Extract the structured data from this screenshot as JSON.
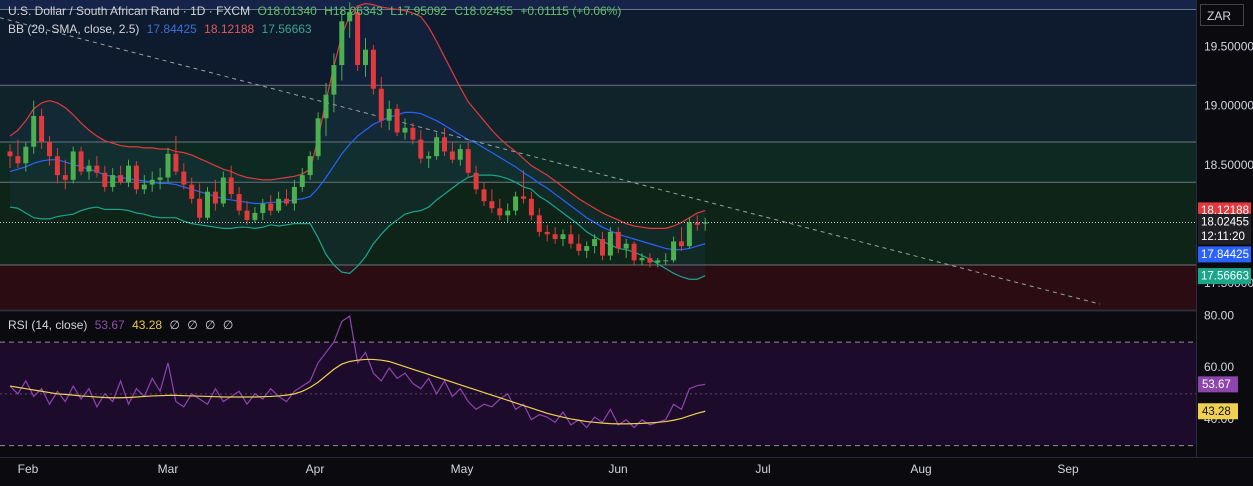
{
  "legend": {
    "symbol": "U.S. Dollar / South African Rand · 1D · FXCM",
    "open": "O18.01340",
    "high": "H18.06343",
    "low": "L17.95092",
    "close": "C18.02455",
    "change": "+0.01115 (+0.06%)",
    "bb_label": "BB (20, SMA, close, 2.5)",
    "bb_basis": "17.84425",
    "bb_upper": "18.12188",
    "bb_lower": "17.56663",
    "rsi_label": "RSI (14, close)",
    "rsi_value": "53.67",
    "rsi_ma": "43.28",
    "rsi_empty": [
      "∅",
      "∅",
      "∅",
      "∅"
    ]
  },
  "currency": "ZAR",
  "colors": {
    "up": "#4caf50",
    "down": "#e0393e",
    "bb_basis": "#2962ff",
    "bb_upper": "#e0393e",
    "bb_lower": "#1aa68a",
    "rsi": "#8e44ad",
    "rsi_ma": "#f0d050",
    "price_badge": "#1f1f24"
  },
  "chart_data": [
    {
      "type": "candlestick",
      "title": "U.S. Dollar / South African Rand",
      "x_ticks": [
        "Feb",
        "Mar",
        "Apr",
        "May",
        "Jun",
        "Jul",
        "Aug",
        "Sep"
      ],
      "y_ticks": [
        "19.50000",
        "19.00000",
        "18.50000",
        "17.50000"
      ],
      "ylim": [
        17.28,
        19.9
      ],
      "badges": [
        {
          "label": "18.12188",
          "value": 18.12188,
          "color": "#e0393e"
        },
        {
          "label": "18.02455",
          "value": 18.02455,
          "color": "#1f1f24"
        },
        {
          "label": "12:11:20",
          "value": 17.9,
          "color": "#1f1f24"
        },
        {
          "label": "17.84425",
          "value": 17.75,
          "color": "#2962ff"
        },
        {
          "label": "17.56663",
          "value": 17.56663,
          "color": "#1aa68a"
        }
      ],
      "zones": [
        {
          "from": 19.82,
          "to": 19.9,
          "color": "#16244a"
        },
        {
          "from": 19.18,
          "to": 19.82,
          "color": "#0e1a2e"
        },
        {
          "from": 18.7,
          "to": 19.18,
          "color": "#10232a"
        },
        {
          "from": 18.36,
          "to": 18.7,
          "color": "#0d2a22"
        },
        {
          "from": 17.66,
          "to": 18.36,
          "color": "#0f2418"
        },
        {
          "from": 17.28,
          "to": 17.66,
          "color": "#2a0c12"
        }
      ],
      "level_lines": [
        19.82,
        19.18,
        18.7,
        18.36,
        17.66
      ],
      "trendline": {
        "from": [
          0,
          19.75
        ],
        "to": [
          1100,
          17.33
        ]
      },
      "candles": [
        [
          18.62,
          18.68,
          18.48,
          18.58
        ],
        [
          18.58,
          18.72,
          18.48,
          18.52
        ],
        [
          18.52,
          18.7,
          18.45,
          18.66
        ],
        [
          18.66,
          19.05,
          18.6,
          18.92
        ],
        [
          18.92,
          18.98,
          18.64,
          18.7
        ],
        [
          18.7,
          18.75,
          18.5,
          18.58
        ],
        [
          18.58,
          18.65,
          18.35,
          18.42
        ],
        [
          18.42,
          18.55,
          18.3,
          18.38
        ],
        [
          18.38,
          18.66,
          18.35,
          18.62
        ],
        [
          18.62,
          18.66,
          18.42,
          18.45
        ],
        [
          18.45,
          18.55,
          18.38,
          18.5
        ],
        [
          18.5,
          18.58,
          18.4,
          18.44
        ],
        [
          18.44,
          18.5,
          18.28,
          18.32
        ],
        [
          18.32,
          18.48,
          18.28,
          18.42
        ],
        [
          18.42,
          18.5,
          18.34,
          18.36
        ],
        [
          18.36,
          18.55,
          18.32,
          18.5
        ],
        [
          18.5,
          18.54,
          18.26,
          18.3
        ],
        [
          18.3,
          18.42,
          18.26,
          18.34
        ],
        [
          18.34,
          18.45,
          18.28,
          18.38
        ],
        [
          18.38,
          18.48,
          18.3,
          18.4
        ],
        [
          18.4,
          18.65,
          18.36,
          18.6
        ],
        [
          18.6,
          18.75,
          18.42,
          18.45
        ],
        [
          18.45,
          18.52,
          18.3,
          18.34
        ],
        [
          18.34,
          18.4,
          18.18,
          18.22
        ],
        [
          18.22,
          18.35,
          18.02,
          18.06
        ],
        [
          18.06,
          18.32,
          18.04,
          18.28
        ],
        [
          18.28,
          18.38,
          18.12,
          18.18
        ],
        [
          18.18,
          18.45,
          18.15,
          18.4
        ],
        [
          18.4,
          18.5,
          18.22,
          18.26
        ],
        [
          18.26,
          18.32,
          18.08,
          18.12
        ],
        [
          18.12,
          18.2,
          18.0,
          18.04
        ],
        [
          18.04,
          18.15,
          18.02,
          18.1
        ],
        [
          18.1,
          18.22,
          18.04,
          18.18
        ],
        [
          18.18,
          18.25,
          18.08,
          18.12
        ],
        [
          18.12,
          18.28,
          18.1,
          18.22
        ],
        [
          18.22,
          18.3,
          18.16,
          18.18
        ],
        [
          18.18,
          18.38,
          18.12,
          18.32
        ],
        [
          18.32,
          18.48,
          18.28,
          18.42
        ],
        [
          18.42,
          18.62,
          18.38,
          18.58
        ],
        [
          18.58,
          18.95,
          18.55,
          18.9
        ],
        [
          18.9,
          19.2,
          18.75,
          19.1
        ],
        [
          19.1,
          19.45,
          18.95,
          19.35
        ],
        [
          19.35,
          19.82,
          19.22,
          19.72
        ],
        [
          19.72,
          19.88,
          19.58,
          19.8
        ],
        [
          19.8,
          19.85,
          19.3,
          19.35
        ],
        [
          19.35,
          19.58,
          19.25,
          19.48
        ],
        [
          19.48,
          19.52,
          19.1,
          19.15
        ],
        [
          19.15,
          19.25,
          18.82,
          18.88
        ],
        [
          18.88,
          19.05,
          18.8,
          18.98
        ],
        [
          18.98,
          19.02,
          18.75,
          18.78
        ],
        [
          18.78,
          18.9,
          18.72,
          18.82
        ],
        [
          18.82,
          18.86,
          18.68,
          18.72
        ],
        [
          18.72,
          18.8,
          18.52,
          18.56
        ],
        [
          18.56,
          18.62,
          18.48,
          18.58
        ],
        [
          18.58,
          18.78,
          18.55,
          18.74
        ],
        [
          18.74,
          18.82,
          18.58,
          18.62
        ],
        [
          18.62,
          18.7,
          18.52,
          18.55
        ],
        [
          18.55,
          18.68,
          18.5,
          18.64
        ],
        [
          18.64,
          18.7,
          18.4,
          18.44
        ],
        [
          18.44,
          18.5,
          18.26,
          18.3
        ],
        [
          18.3,
          18.36,
          18.16,
          18.2
        ],
        [
          18.2,
          18.3,
          18.1,
          18.14
        ],
        [
          18.14,
          18.22,
          18.04,
          18.08
        ],
        [
          18.08,
          18.18,
          18.02,
          18.12
        ],
        [
          18.12,
          18.28,
          18.08,
          18.24
        ],
        [
          18.24,
          18.46,
          18.18,
          18.22
        ],
        [
          18.22,
          18.28,
          18.04,
          18.08
        ],
        [
          18.08,
          18.14,
          17.9,
          17.94
        ],
        [
          17.94,
          18.0,
          17.86,
          17.92
        ],
        [
          17.92,
          17.98,
          17.84,
          17.88
        ],
        [
          17.88,
          17.96,
          17.82,
          17.92
        ],
        [
          17.92,
          18.0,
          17.8,
          17.84
        ],
        [
          17.84,
          17.92,
          17.74,
          17.78
        ],
        [
          17.78,
          17.86,
          17.72,
          17.82
        ],
        [
          17.82,
          17.92,
          17.76,
          17.88
        ],
        [
          17.88,
          17.94,
          17.7,
          17.74
        ],
        [
          17.74,
          17.98,
          17.7,
          17.94
        ],
        [
          17.94,
          17.98,
          17.76,
          17.8
        ],
        [
          17.8,
          17.88,
          17.72,
          17.84
        ],
        [
          17.84,
          17.86,
          17.66,
          17.7
        ],
        [
          17.7,
          17.76,
          17.66,
          17.72
        ],
        [
          17.72,
          17.76,
          17.64,
          17.68
        ],
        [
          17.68,
          17.72,
          17.64,
          17.7
        ],
        [
          17.7,
          17.76,
          17.66,
          17.7
        ],
        [
          17.7,
          17.9,
          17.68,
          17.86
        ],
        [
          17.86,
          17.98,
          17.78,
          17.82
        ],
        [
          17.82,
          18.06,
          17.8,
          18.02
        ],
        [
          18.02,
          18.08,
          17.95,
          18.0
        ],
        [
          18.01,
          18.06,
          17.95,
          18.02
        ]
      ],
      "bb_upper": [
        18.75,
        18.8,
        18.88,
        18.98,
        19.03,
        19.05,
        19.03,
        18.99,
        18.93,
        18.86,
        18.8,
        18.75,
        18.71,
        18.69,
        18.67,
        18.66,
        18.66,
        18.65,
        18.65,
        18.64,
        18.64,
        18.62,
        18.61,
        18.59,
        18.56,
        18.53,
        18.5,
        18.47,
        18.45,
        18.42,
        18.4,
        18.39,
        18.38,
        18.38,
        18.39,
        18.4,
        18.41,
        18.43,
        18.47,
        18.73,
        19.05,
        19.34,
        19.6,
        19.77,
        19.85,
        19.87,
        19.86,
        19.84,
        19.83,
        19.82,
        19.81,
        19.79,
        19.76,
        19.67,
        19.55,
        19.42,
        19.29,
        19.16,
        19.04,
        18.96,
        18.88,
        18.8,
        18.73,
        18.67,
        18.62,
        18.56,
        18.5,
        18.46,
        18.42,
        18.37,
        18.32,
        18.27,
        18.22,
        18.18,
        18.14,
        18.1,
        18.07,
        18.04,
        18.01,
        17.99,
        17.98,
        17.97,
        17.97,
        17.97,
        17.99,
        18.02,
        18.06,
        18.1,
        18.12
      ],
      "bb_basis": [
        18.45,
        18.47,
        18.49,
        18.52,
        18.54,
        18.55,
        18.55,
        18.53,
        18.51,
        18.49,
        18.47,
        18.45,
        18.42,
        18.41,
        18.4,
        18.39,
        18.38,
        18.37,
        18.36,
        18.35,
        18.35,
        18.34,
        18.32,
        18.3,
        18.28,
        18.26,
        18.24,
        18.22,
        18.21,
        18.2,
        18.19,
        18.18,
        18.18,
        18.19,
        18.19,
        18.2,
        18.21,
        18.22,
        18.24,
        18.31,
        18.4,
        18.5,
        18.6,
        18.68,
        18.75,
        18.8,
        18.85,
        18.88,
        18.91,
        18.93,
        18.95,
        18.95,
        18.94,
        18.91,
        18.88,
        18.84,
        18.8,
        18.76,
        18.72,
        18.69,
        18.65,
        18.61,
        18.57,
        18.53,
        18.49,
        18.44,
        18.4,
        18.35,
        18.31,
        18.26,
        18.21,
        18.16,
        18.11,
        18.06,
        18.02,
        17.98,
        17.95,
        17.92,
        17.9,
        17.88,
        17.86,
        17.84,
        17.82,
        17.8,
        17.79,
        17.79,
        17.8,
        17.82,
        17.84
      ],
      "bb_lower": [
        18.15,
        18.14,
        18.1,
        18.06,
        18.05,
        18.05,
        18.07,
        18.08,
        18.09,
        18.12,
        18.14,
        18.15,
        18.13,
        18.13,
        18.13,
        18.12,
        18.1,
        18.09,
        18.07,
        18.06,
        18.06,
        18.06,
        18.03,
        18.01,
        18.0,
        17.99,
        17.98,
        17.97,
        17.97,
        17.98,
        17.98,
        17.97,
        17.98,
        18.0,
        17.99,
        18.0,
        18.01,
        18.01,
        18.01,
        17.89,
        17.75,
        17.66,
        17.6,
        17.59,
        17.65,
        17.73,
        17.84,
        17.92,
        17.99,
        18.04,
        18.09,
        18.11,
        18.12,
        18.15,
        18.21,
        18.26,
        18.31,
        18.36,
        18.4,
        18.42,
        18.42,
        18.42,
        18.41,
        18.39,
        18.36,
        18.32,
        18.3,
        18.24,
        18.2,
        18.15,
        18.1,
        18.05,
        18.0,
        17.94,
        17.9,
        17.86,
        17.83,
        17.8,
        17.79,
        17.77,
        17.74,
        17.71,
        17.67,
        17.63,
        17.59,
        17.56,
        17.54,
        17.54,
        17.57
      ]
    },
    {
      "type": "line",
      "title": "RSI (14, close)",
      "y_ticks": [
        "80.00",
        "60.00",
        "40.00"
      ],
      "ylim": [
        26,
        82
      ],
      "band": [
        30,
        70
      ],
      "midline": 50,
      "badges": [
        {
          "label": "53.67",
          "value": 53.67,
          "color": "#8e44ad"
        },
        {
          "label": "43.28",
          "value": 43.28,
          "color": "#f0d050"
        }
      ],
      "series": [
        {
          "values": [
            53,
            50,
            55,
            49,
            52,
            46,
            51,
            47,
            53,
            48,
            52,
            45,
            50,
            47,
            55,
            46,
            52,
            49,
            56,
            51,
            62,
            47,
            45,
            50,
            48,
            46,
            52,
            47,
            49,
            51,
            46,
            50,
            48,
            52,
            49,
            47,
            51,
            53,
            55,
            62,
            66,
            70,
            78,
            80,
            62,
            66,
            58,
            55,
            60,
            56,
            58,
            54,
            52,
            56,
            50,
            55,
            49,
            52,
            47,
            44,
            46,
            45,
            48,
            50,
            44,
            46,
            40,
            42,
            41,
            39,
            43,
            38,
            40,
            37,
            41,
            39,
            44,
            38,
            40,
            37,
            40,
            38,
            39,
            40,
            46,
            44,
            52,
            53.2,
            53.67
          ]
        },
        {
          "values": [
            53,
            52.5,
            52,
            51.5,
            51,
            50.5,
            50,
            49.8,
            49.5,
            49.2,
            49,
            48.8,
            48.6,
            48.5,
            48.5,
            48.6,
            48.8,
            49,
            49.2,
            49.3,
            49.4,
            49.4,
            49.3,
            49.2,
            49.1,
            49,
            48.9,
            48.8,
            48.8,
            48.8,
            48.8,
            48.8,
            48.9,
            49,
            49.2,
            49.5,
            50,
            51,
            52.5,
            54.5,
            57,
            59.5,
            61.5,
            62.5,
            63,
            63.3,
            63.3,
            63,
            62.5,
            61.5,
            60.5,
            59.5,
            58.5,
            57.5,
            56.5,
            55.5,
            54.5,
            53.5,
            52.5,
            51.5,
            50.5,
            49.5,
            48.5,
            47.5,
            46.5,
            45.5,
            44.5,
            43.5,
            42.5,
            41.7,
            41,
            40.3,
            39.8,
            39.3,
            39,
            38.7,
            38.5,
            38.4,
            38.4,
            38.5,
            38.6,
            38.8,
            39,
            39.3,
            39.8,
            40.5,
            41.5,
            42.5,
            43.28
          ]
        }
      ]
    }
  ]
}
